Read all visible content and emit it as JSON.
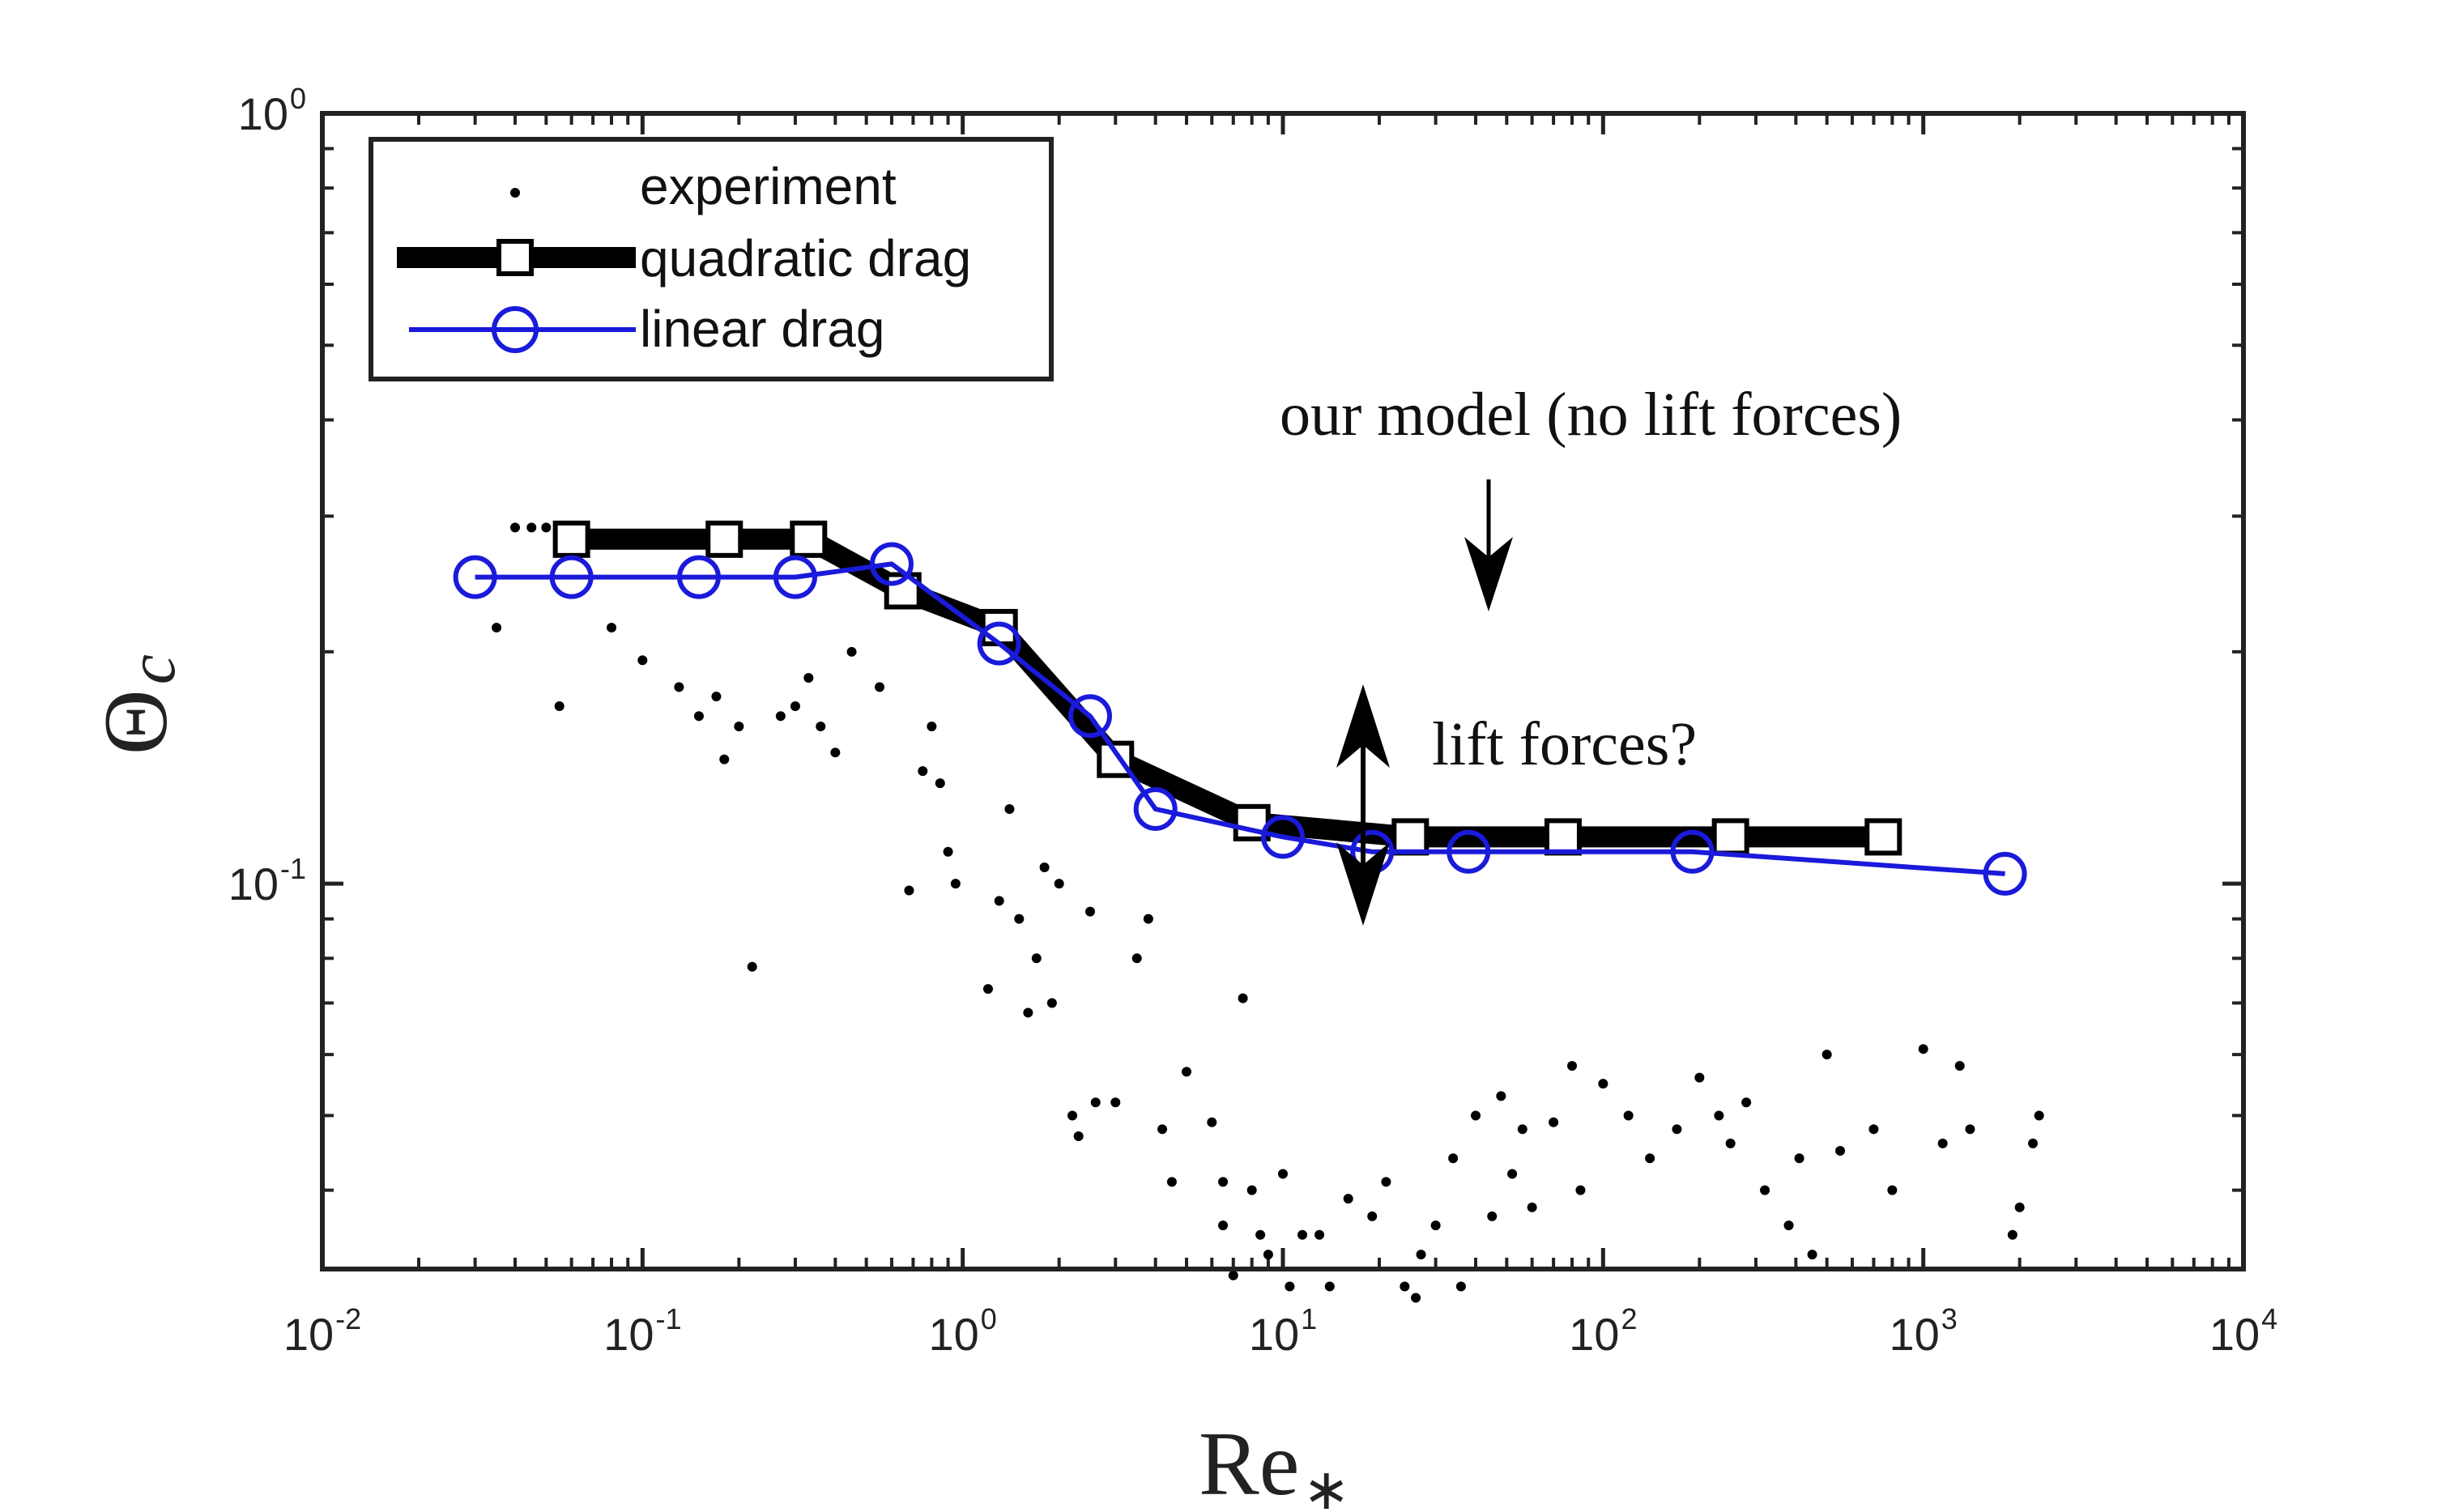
{
  "chart_data": {
    "type": "line",
    "xscale": "log",
    "yscale": "log",
    "xlim": [
      0.01,
      10000
    ],
    "ylim": [
      0.0316,
      1
    ],
    "xlabel": "Re",
    "xlabel_sub": "∗",
    "ylabel": "Θ",
    "ylabel_sub": "c",
    "x_ticks": [
      {
        "base": "10",
        "exp": "-2",
        "value": 0.01
      },
      {
        "base": "10",
        "exp": "-1",
        "value": 0.1
      },
      {
        "base": "10",
        "exp": "0",
        "value": 1
      },
      {
        "base": "10",
        "exp": "1",
        "value": 10
      },
      {
        "base": "10",
        "exp": "2",
        "value": 100
      },
      {
        "base": "10",
        "exp": "3",
        "value": 1000
      },
      {
        "base": "10",
        "exp": "4",
        "value": 10000
      }
    ],
    "y_ticks": [
      {
        "base": "10",
        "exp": "-1",
        "value": 0.1
      },
      {
        "base": "10",
        "exp": "0",
        "value": 1
      }
    ],
    "legend": {
      "position": "top-left",
      "entries": [
        "experiment",
        "quadratic drag",
        "linear drag"
      ]
    },
    "series": [
      {
        "name": "quadratic drag",
        "color": "#000000",
        "marker": "square",
        "x": [
          0.06,
          0.18,
          0.33,
          0.65,
          1.3,
          3.0,
          8.0,
          25.0,
          75.0,
          250.0,
          750.0
        ],
        "y": [
          0.28,
          0.28,
          0.28,
          0.24,
          0.215,
          0.145,
          0.12,
          0.115,
          0.115,
          0.115,
          0.115
        ]
      },
      {
        "name": "linear drag",
        "color": "#1a1adb",
        "marker": "circle",
        "x": [
          0.03,
          0.06,
          0.15,
          0.3,
          0.6,
          1.3,
          2.5,
          4.0,
          10.0,
          19.0,
          38.0,
          190.0,
          1800.0
        ],
        "y": [
          0.25,
          0.25,
          0.25,
          0.25,
          0.26,
          0.205,
          0.165,
          0.125,
          0.115,
          0.11,
          0.11,
          0.11,
          0.103
        ]
      },
      {
        "name": "experiment",
        "color": "#000000",
        "marker": "dot",
        "points": [
          [
            0.035,
            0.215
          ],
          [
            0.04,
            0.29
          ],
          [
            0.045,
            0.29
          ],
          [
            0.05,
            0.29
          ],
          [
            0.055,
            0.17
          ],
          [
            0.08,
            0.215
          ],
          [
            0.1,
            0.195
          ],
          [
            0.13,
            0.18
          ],
          [
            0.15,
            0.165
          ],
          [
            0.17,
            0.175
          ],
          [
            0.18,
            0.145
          ],
          [
            0.2,
            0.16
          ],
          [
            0.22,
            0.078
          ],
          [
            0.27,
            0.165
          ],
          [
            0.3,
            0.17
          ],
          [
            0.33,
            0.185
          ],
          [
            0.36,
            0.16
          ],
          [
            0.4,
            0.148
          ],
          [
            0.45,
            0.2
          ],
          [
            0.55,
            0.18
          ],
          [
            0.68,
            0.098
          ],
          [
            0.75,
            0.14
          ],
          [
            0.8,
            0.16
          ],
          [
            0.85,
            0.135
          ],
          [
            0.9,
            0.11
          ],
          [
            0.95,
            0.1
          ],
          [
            1.2,
            0.073
          ],
          [
            1.3,
            0.095
          ],
          [
            1.4,
            0.125
          ],
          [
            1.5,
            0.09
          ],
          [
            1.6,
            0.068
          ],
          [
            1.7,
            0.08
          ],
          [
            1.8,
            0.105
          ],
          [
            1.9,
            0.07
          ],
          [
            2.0,
            0.1
          ],
          [
            2.2,
            0.05
          ],
          [
            2.3,
            0.047
          ],
          [
            2.5,
            0.092
          ],
          [
            2.6,
            0.052
          ],
          [
            3.0,
            0.052
          ],
          [
            3.5,
            0.08
          ],
          [
            3.8,
            0.09
          ],
          [
            4.2,
            0.048
          ],
          [
            4.5,
            0.041
          ],
          [
            5.0,
            0.057
          ],
          [
            6.0,
            0.049
          ],
          [
            6.5,
            0.041
          ],
          [
            6.5,
            0.036
          ],
          [
            7.0,
            0.031
          ],
          [
            7.5,
            0.071
          ],
          [
            8.0,
            0.04
          ],
          [
            8.5,
            0.035
          ],
          [
            9.0,
            0.033
          ],
          [
            10.0,
            0.042
          ],
          [
            10.5,
            0.03
          ],
          [
            11.5,
            0.035
          ],
          [
            13.0,
            0.035
          ],
          [
            14.0,
            0.03
          ],
          [
            16.0,
            0.039
          ],
          [
            19.0,
            0.037
          ],
          [
            21.0,
            0.041
          ],
          [
            24.0,
            0.03
          ],
          [
            26.0,
            0.029
          ],
          [
            27.0,
            0.033
          ],
          [
            30.0,
            0.036
          ],
          [
            34.0,
            0.044
          ],
          [
            36.0,
            0.03
          ],
          [
            40.0,
            0.05
          ],
          [
            45.0,
            0.037
          ],
          [
            48.0,
            0.053
          ],
          [
            52.0,
            0.042
          ],
          [
            56.0,
            0.048
          ],
          [
            60.0,
            0.038
          ],
          [
            70.0,
            0.049
          ],
          [
            80.0,
            0.058
          ],
          [
            85.0,
            0.04
          ],
          [
            100.0,
            0.055
          ],
          [
            120.0,
            0.05
          ],
          [
            140.0,
            0.044
          ],
          [
            170.0,
            0.048
          ],
          [
            200.0,
            0.056
          ],
          [
            230.0,
            0.05
          ],
          [
            250.0,
            0.046
          ],
          [
            280.0,
            0.052
          ],
          [
            320.0,
            0.04
          ],
          [
            380.0,
            0.036
          ],
          [
            410.0,
            0.044
          ],
          [
            450.0,
            0.033
          ],
          [
            500.0,
            0.06
          ],
          [
            550.0,
            0.045
          ],
          [
            700.0,
            0.048
          ],
          [
            800.0,
            0.04
          ],
          [
            1000.0,
            0.061
          ],
          [
            1150.0,
            0.046
          ],
          [
            1300.0,
            0.058
          ],
          [
            1400.0,
            0.048
          ],
          [
            1900.0,
            0.035
          ],
          [
            2000.0,
            0.038
          ],
          [
            2200.0,
            0.046
          ],
          [
            2300.0,
            0.05
          ]
        ]
      }
    ],
    "annotations": [
      {
        "text": "our model (no lift forces)",
        "arrow": "down"
      },
      {
        "text": "lift forces?",
        "arrow": "double-vertical"
      }
    ]
  }
}
